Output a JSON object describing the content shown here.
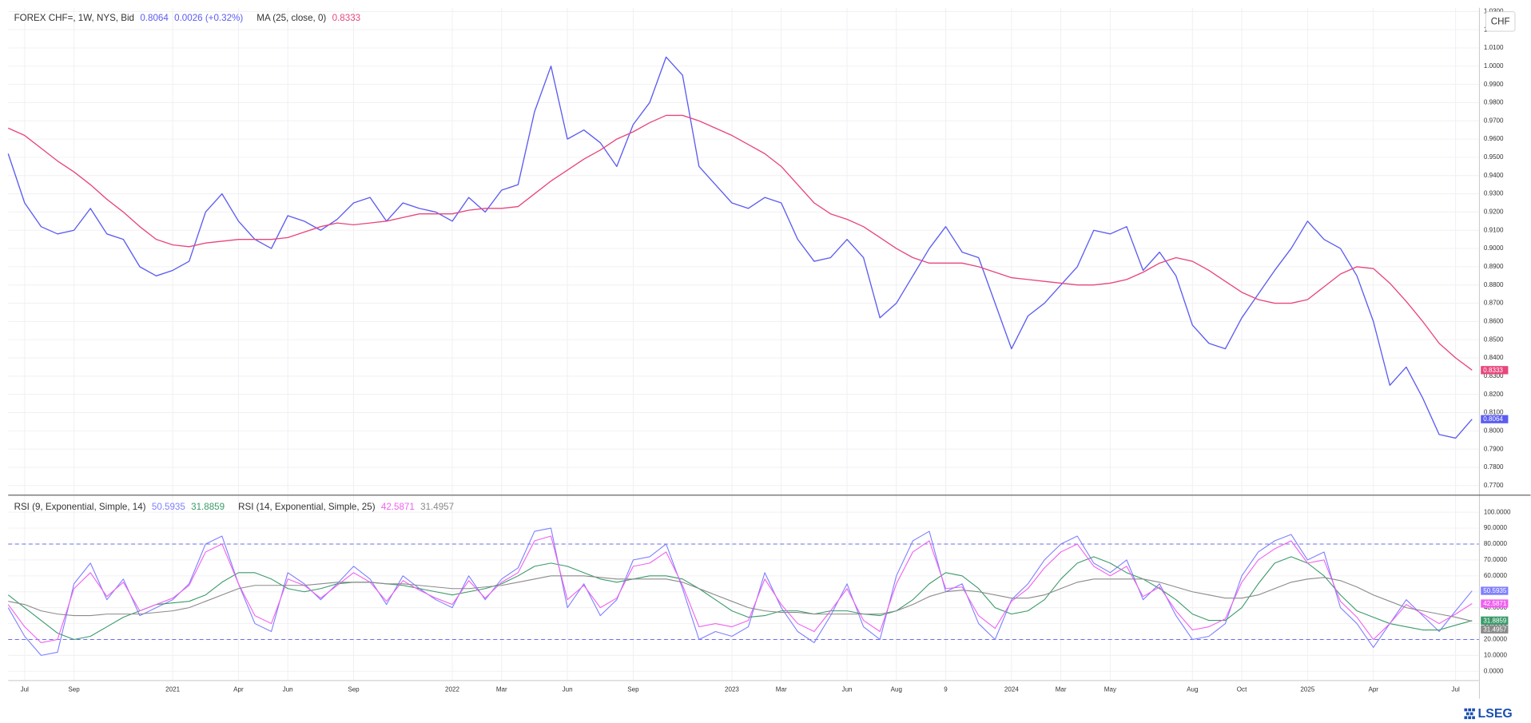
{
  "logo": "LSEG",
  "chart_data": [
    {
      "type": "line",
      "unit": "CHF",
      "change": "0.0026 (+0.32%)",
      "ylim": [
        0.765,
        1.032
      ],
      "yticks": [
        {
          "value": 0.77,
          "label": "0.7700"
        },
        {
          "value": 0.78,
          "label": "0.7800"
        },
        {
          "value": 0.79,
          "label": "0.7900"
        },
        {
          "value": 0.8,
          "label": "0.8000"
        },
        {
          "value": 0.81,
          "label": "0.8100"
        },
        {
          "value": 0.82,
          "label": "0.8200"
        },
        {
          "value": 0.83,
          "label": "0.8300"
        },
        {
          "value": 0.84,
          "label": "0.8400"
        },
        {
          "value": 0.85,
          "label": "0.8500"
        },
        {
          "value": 0.86,
          "label": "0.8600"
        },
        {
          "value": 0.87,
          "label": "0.8700"
        },
        {
          "value": 0.88,
          "label": "0.8800"
        },
        {
          "value": 0.89,
          "label": "0.8900"
        },
        {
          "value": 0.9,
          "label": "0.9000"
        },
        {
          "value": 0.91,
          "label": "0.9100"
        },
        {
          "value": 0.92,
          "label": "0.9200"
        },
        {
          "value": 0.93,
          "label": "0.9300"
        },
        {
          "value": 0.94,
          "label": "0.9400"
        },
        {
          "value": 0.95,
          "label": "0.9500"
        },
        {
          "value": 0.96,
          "label": "0.9600"
        },
        {
          "value": 0.97,
          "label": "0.9700"
        },
        {
          "value": 0.98,
          "label": "0.9800"
        },
        {
          "value": 0.99,
          "label": "0.9900"
        },
        {
          "value": 1.0,
          "label": "1.0000"
        },
        {
          "value": 1.01,
          "label": "1.0100"
        },
        {
          "value": 1.02,
          "label": "1.0200"
        },
        {
          "value": 1.03,
          "label": "1.0300"
        }
      ],
      "grid": true,
      "series": [
        {
          "name": "FOREX CHF=, 1W, NYS, Bid",
          "color": "#5c5cf2",
          "values": [
            0.952,
            0.925,
            0.912,
            0.908,
            0.91,
            0.922,
            0.908,
            0.905,
            0.89,
            0.885,
            0.888,
            0.893,
            0.92,
            0.93,
            0.915,
            0.905,
            0.9,
            0.918,
            0.915,
            0.91,
            0.916,
            0.925,
            0.928,
            0.915,
            0.925,
            0.922,
            0.92,
            0.915,
            0.928,
            0.92,
            0.932,
            0.935,
            0.975,
            1.0,
            0.96,
            0.965,
            0.958,
            0.945,
            0.968,
            0.98,
            1.005,
            0.995,
            0.945,
            0.935,
            0.925,
            0.922,
            0.928,
            0.925,
            0.905,
            0.893,
            0.895,
            0.905,
            0.895,
            0.862,
            0.87,
            0.885,
            0.9,
            0.912,
            0.898,
            0.895,
            0.87,
            0.845,
            0.863,
            0.87,
            0.88,
            0.89,
            0.91,
            0.908,
            0.912,
            0.888,
            0.898,
            0.885,
            0.858,
            0.848,
            0.845,
            0.862,
            0.875,
            0.888,
            0.9,
            0.915,
            0.905,
            0.9,
            0.885,
            0.86,
            0.825,
            0.835,
            0.818,
            0.798,
            0.796,
            0.8064
          ]
        },
        {
          "name": "MA (25, close, 0)",
          "color": "#e8467c",
          "values": [
            0.966,
            0.962,
            0.955,
            0.948,
            0.942,
            0.935,
            0.927,
            0.92,
            0.912,
            0.905,
            0.902,
            0.901,
            0.903,
            0.904,
            0.905,
            0.905,
            0.905,
            0.906,
            0.909,
            0.912,
            0.914,
            0.913,
            0.914,
            0.915,
            0.917,
            0.919,
            0.919,
            0.919,
            0.921,
            0.922,
            0.922,
            0.923,
            0.93,
            0.937,
            0.943,
            0.949,
            0.954,
            0.96,
            0.964,
            0.969,
            0.973,
            0.973,
            0.97,
            0.966,
            0.962,
            0.957,
            0.952,
            0.945,
            0.935,
            0.925,
            0.919,
            0.916,
            0.912,
            0.906,
            0.9,
            0.895,
            0.892,
            0.892,
            0.892,
            0.89,
            0.887,
            0.884,
            0.883,
            0.882,
            0.881,
            0.88,
            0.88,
            0.881,
            0.883,
            0.887,
            0.892,
            0.895,
            0.893,
            0.888,
            0.882,
            0.876,
            0.872,
            0.87,
            0.87,
            0.872,
            0.879,
            0.886,
            0.89,
            0.889,
            0.881,
            0.871,
            0.86,
            0.848,
            0.84,
            0.8333
          ]
        }
      ]
    },
    {
      "type": "line",
      "categories": [
        null,
        "Jul",
        null,
        null,
        "Sep",
        null,
        null,
        null,
        null,
        null,
        "2021",
        null,
        null,
        null,
        "Apr",
        null,
        null,
        "Jun",
        null,
        null,
        null,
        "Sep",
        null,
        null,
        null,
        null,
        null,
        "2022",
        null,
        null,
        "Mar",
        null,
        null,
        null,
        "Jun",
        null,
        null,
        null,
        "Sep",
        null,
        null,
        null,
        null,
        null,
        "2023",
        null,
        null,
        "Mar",
        null,
        null,
        null,
        "Jun",
        null,
        null,
        "Aug",
        null,
        null,
        "9",
        null,
        null,
        null,
        "2024",
        null,
        null,
        "Mar",
        null,
        null,
        "May",
        null,
        null,
        null,
        null,
        "Aug",
        null,
        null,
        "Oct",
        null,
        null,
        null,
        "2025",
        null,
        null,
        null,
        "Apr",
        null,
        null,
        null,
        null,
        "Jul",
        null
      ],
      "ylim": [
        -5.5,
        110.4
      ],
      "yticks": [
        {
          "value": 0,
          "label": "0.0000"
        },
        {
          "value": 10,
          "label": "10.0000"
        },
        {
          "value": 20,
          "label": "20.0000"
        },
        {
          "value": 30,
          "label": "30.0000"
        },
        {
          "value": 40,
          "label": "40.0000"
        },
        {
          "value": 50,
          "label": "50.0000"
        },
        {
          "value": 60,
          "label": "60.0000"
        },
        {
          "value": 70,
          "label": "70.0000"
        },
        {
          "value": 80,
          "label": "80.0000"
        },
        {
          "value": 90,
          "label": "90.0000"
        },
        {
          "value": 100,
          "label": "100.0000"
        }
      ],
      "levels": [
        80,
        20
      ],
      "grid": true,
      "series": [
        {
          "name": "RSI (9, Exponential, Simple, 14)",
          "color": "#7f7fff",
          "values": [
            40,
            22,
            10,
            12,
            55,
            68,
            45,
            58,
            35,
            40,
            45,
            55,
            80,
            85,
            55,
            30,
            25,
            62,
            55,
            45,
            55,
            66,
            58,
            42,
            60,
            52,
            45,
            40,
            60,
            45,
            58,
            65,
            88,
            90,
            40,
            55,
            35,
            45,
            70,
            72,
            80,
            52,
            20,
            25,
            22,
            28,
            62,
            40,
            25,
            18,
            35,
            55,
            28,
            20,
            60,
            82,
            88,
            50,
            55,
            30,
            20,
            45,
            55,
            70,
            80,
            85,
            68,
            62,
            70,
            45,
            55,
            35,
            20,
            22,
            30,
            60,
            75,
            82,
            86,
            70,
            75,
            40,
            30,
            15,
            30,
            45,
            35,
            25,
            38,
            50.5935
          ]
        },
        {
          "color": "#3a9a6a",
          "values": [
            48,
            40,
            32,
            24,
            20,
            22,
            28,
            34,
            38,
            42,
            43,
            44,
            48,
            56,
            62,
            62,
            58,
            52,
            50,
            52,
            55,
            56,
            56,
            55,
            54,
            52,
            50,
            48,
            50,
            52,
            55,
            60,
            66,
            68,
            66,
            62,
            58,
            56,
            58,
            60,
            60,
            58,
            52,
            45,
            38,
            34,
            35,
            38,
            38,
            36,
            38,
            38,
            36,
            35,
            38,
            45,
            55,
            62,
            60,
            52,
            40,
            36,
            38,
            45,
            58,
            68,
            72,
            68,
            62,
            58,
            52,
            45,
            36,
            32,
            32,
            40,
            55,
            68,
            72,
            68,
            60,
            48,
            38,
            34,
            30,
            28,
            26,
            26,
            29,
            31.8859
          ]
        },
        {
          "name": "RSI (14, Exponential, Simple, 25)",
          "color": "#f060f0",
          "values": [
            42,
            28,
            18,
            20,
            52,
            62,
            47,
            56,
            38,
            42,
            46,
            54,
            75,
            80,
            55,
            35,
            30,
            58,
            54,
            46,
            54,
            62,
            56,
            44,
            57,
            51,
            46,
            42,
            57,
            46,
            56,
            62,
            82,
            85,
            45,
            54,
            40,
            46,
            66,
            68,
            75,
            54,
            28,
            30,
            28,
            32,
            58,
            42,
            30,
            25,
            38,
            52,
            32,
            25,
            55,
            75,
            82,
            52,
            53,
            35,
            27,
            44,
            52,
            65,
            75,
            80,
            66,
            60,
            66,
            47,
            53,
            38,
            26,
            28,
            33,
            56,
            70,
            77,
            82,
            68,
            70,
            44,
            34,
            20,
            30,
            42,
            36,
            30,
            36,
            42.5871
          ]
        },
        {
          "color": "#8a8a8a",
          "values": [
            44,
            42,
            38,
            36,
            35,
            35,
            36,
            36,
            36,
            37,
            38,
            40,
            44,
            48,
            52,
            54,
            54,
            54,
            54,
            55,
            56,
            56,
            56,
            55,
            55,
            54,
            53,
            52,
            52,
            53,
            54,
            56,
            58,
            60,
            60,
            60,
            59,
            58,
            58,
            58,
            58,
            56,
            52,
            48,
            44,
            40,
            38,
            37,
            37,
            36,
            36,
            36,
            36,
            36,
            38,
            42,
            47,
            50,
            51,
            50,
            48,
            46,
            46,
            48,
            52,
            56,
            58,
            58,
            58,
            58,
            56,
            53,
            50,
            48,
            46,
            46,
            48,
            52,
            56,
            58,
            59,
            57,
            53,
            48,
            44,
            40,
            38,
            36,
            34,
            31.4957
          ]
        }
      ]
    }
  ]
}
